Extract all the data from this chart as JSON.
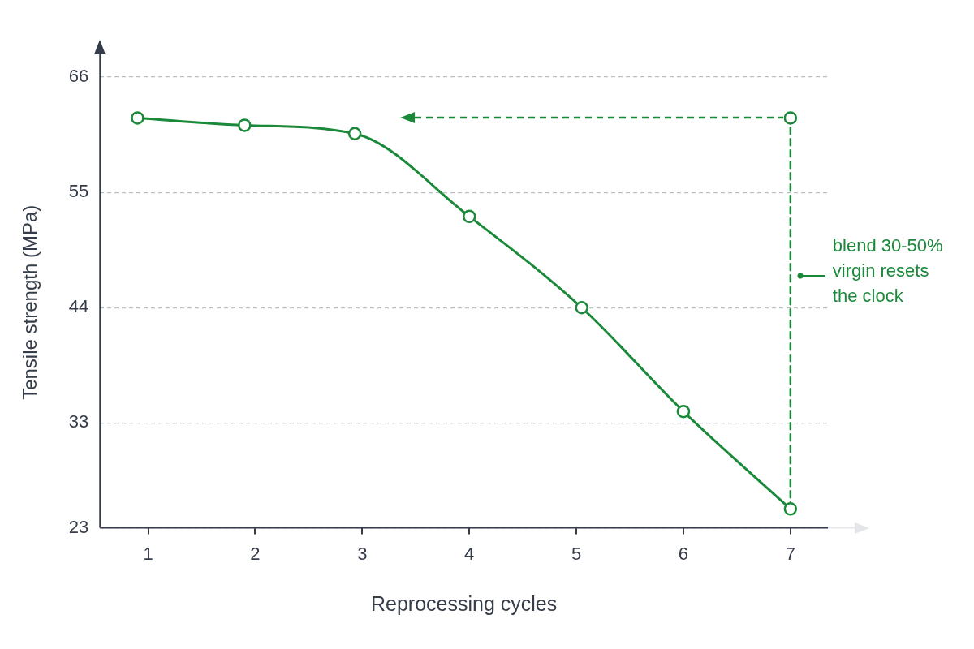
{
  "chart_data": {
    "type": "line",
    "xlabel": "Reprocessing cycles",
    "ylabel": "Tensile strength (MPa)",
    "xlim": [
      0.55,
      7.35
    ],
    "xticks": [
      1,
      2,
      3,
      4,
      5,
      6,
      7
    ],
    "ylim": [
      23,
      66
    ],
    "yticks": [
      23,
      33,
      44,
      55,
      66
    ],
    "grid": "y",
    "legend": false,
    "marker": "circle",
    "series": [
      {
        "color": "#1a8a3a",
        "x": [
          0.9,
          1.9,
          2.93,
          4,
          5.05,
          6,
          7
        ],
        "values": [
          62.1,
          61.4,
          60.6,
          52.7,
          44.0,
          34.1,
          24.8
        ]
      },
      {
        "color": "#1a8a3a",
        "line_style": "dashed",
        "marker": "none",
        "x": [
          7,
          7
        ],
        "values": [
          24.8,
          62.1
        ]
      },
      {
        "type": "scatter",
        "color": "#1a8a3a",
        "x": [
          7
        ],
        "values": [
          62.1
        ]
      }
    ],
    "annotations": [
      {
        "text": "blend 30-50% virgin resets the clock",
        "x": 7,
        "y": 47
      }
    ]
  }
}
